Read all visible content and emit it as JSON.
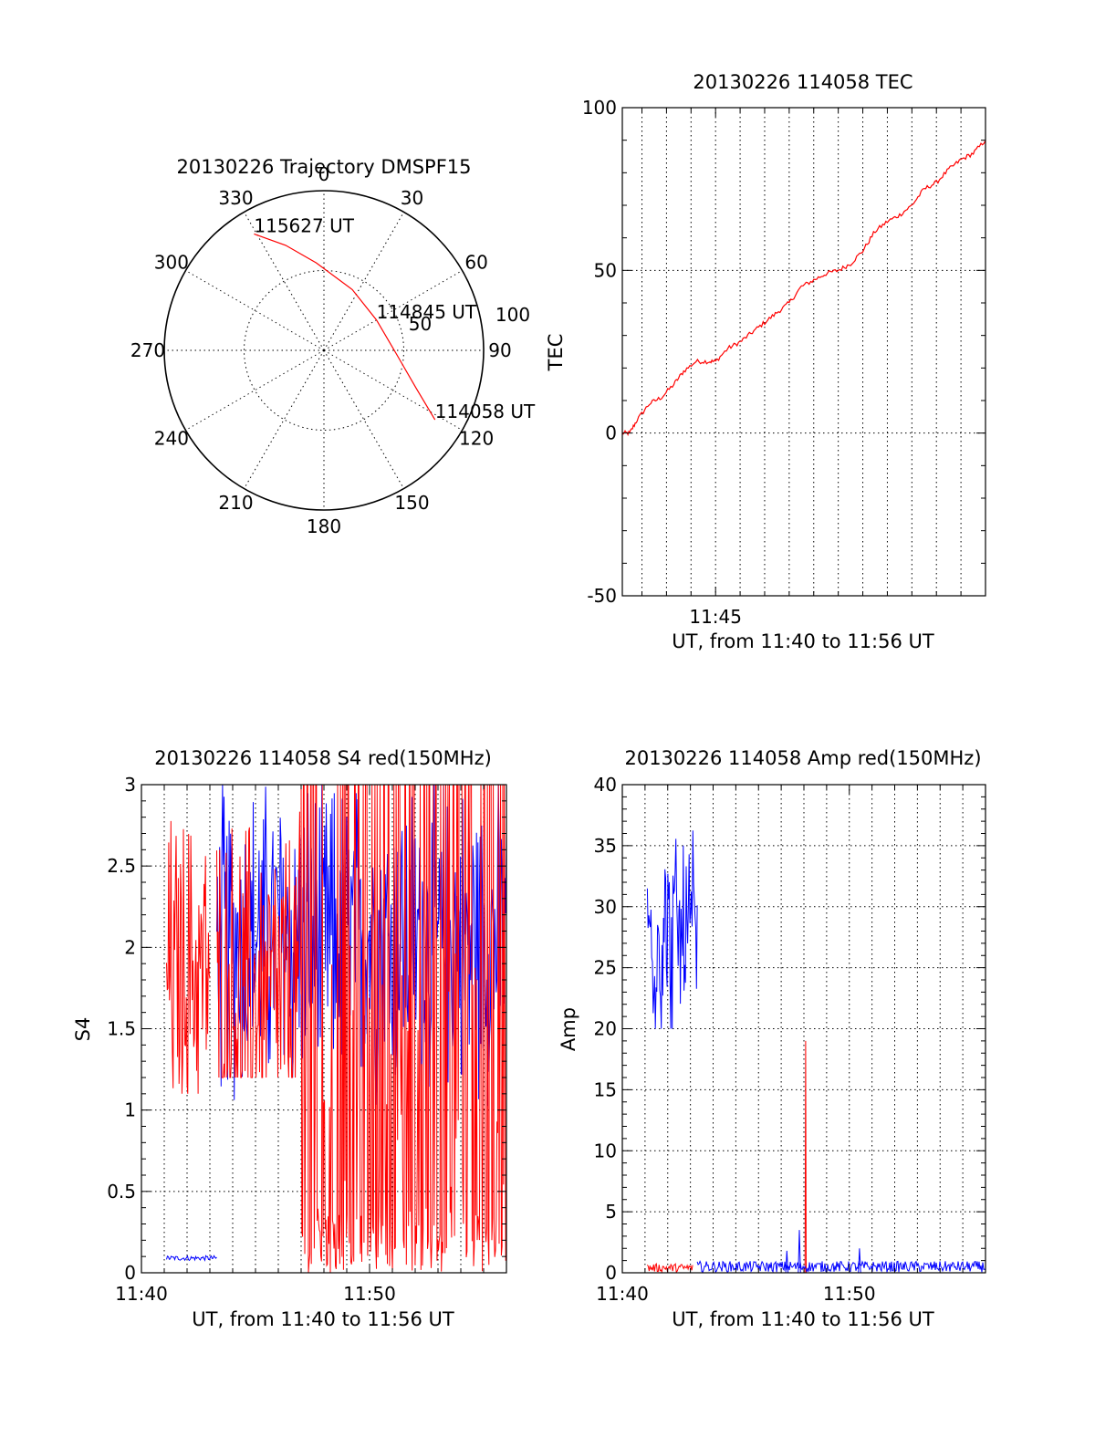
{
  "figure": {
    "colors": {
      "red": "#ff0000",
      "blue": "#0000ff",
      "axis": "#000000"
    }
  },
  "chart_data": [
    {
      "id": "trajectory",
      "type": "polar",
      "title": "20130226 Trajectory DMSPF15",
      "angle_labels": [
        "0",
        "30",
        "60",
        "90",
        "120",
        "150",
        "180",
        "210",
        "240",
        "270",
        "300",
        "330"
      ],
      "radial_max": 100,
      "radial_rings": [
        50,
        100
      ],
      "radial_ring_labels": [
        "50",
        "100"
      ],
      "series": [
        {
          "color": "#ff0000",
          "points": [
            {
              "az": 329,
              "zen": 85
            },
            {
              "az": 340,
              "zen": 70
            },
            {
              "az": 355,
              "zen": 55
            },
            {
              "az": 25,
              "zen": 42
            },
            {
              "az": 60,
              "zen": 38
            },
            {
              "az": 92,
              "zen": 45
            },
            {
              "az": 112,
              "zen": 62
            },
            {
              "az": 122,
              "zen": 82
            }
          ]
        }
      ],
      "annotations": [
        {
          "text": "115627 UT",
          "az": 329,
          "zen": 85
        },
        {
          "text": "114845 UT",
          "az": 60,
          "zen": 38
        },
        {
          "text": "114058 UT",
          "az": 122,
          "zen": 82
        }
      ]
    },
    {
      "id": "tec",
      "type": "line",
      "title": "20130226 114058 TEC",
      "xlabel": "UT, from 11:40 to 11:56 UT",
      "ylabel": "TEC",
      "xlim_minutes": [
        41.2,
        56
      ],
      "ylim": [
        -50,
        100
      ],
      "x_ticks": [
        {
          "at": 45,
          "label": "11:45"
        }
      ],
      "y_ticks": [
        -50,
        0,
        50,
        100
      ],
      "y_tick_labels": [
        "-50",
        "0",
        "50",
        "100"
      ],
      "grid_x_step_minutes": 1,
      "series": [
        {
          "color": "#ff0000",
          "x": [
            41.2,
            41.5,
            41.8,
            42.3,
            42.8,
            43.3,
            43.7,
            44.2,
            44.7,
            45.0,
            45.5,
            46.0,
            46.5,
            47.0,
            47.5,
            48.0,
            48.5,
            49.0,
            49.5,
            50.0,
            50.5,
            51.0,
            51.5,
            52.0,
            52.5,
            53.0,
            53.5,
            54.0,
            54.5,
            55.0,
            55.5,
            56.0
          ],
          "y": [
            0,
            0,
            4,
            9,
            11,
            15,
            19,
            22,
            22,
            22,
            26,
            28,
            31,
            34,
            37,
            40,
            45,
            47,
            49,
            50,
            52,
            56,
            62,
            65,
            67,
            70,
            75,
            77,
            81,
            84,
            86,
            90
          ]
        }
      ]
    },
    {
      "id": "s4",
      "type": "line",
      "title": "20130226 114058 S4 red(150MHz)",
      "xlabel": "UT, from 11:40 to 11:56 UT",
      "ylabel": "S4",
      "xlim_minutes": [
        40,
        56
      ],
      "ylim": [
        0,
        3
      ],
      "x_ticks": [
        {
          "at": 40,
          "label": "11:40"
        },
        {
          "at": 50,
          "label": "11:50"
        }
      ],
      "y_ticks": [
        0,
        0.5,
        1,
        1.5,
        2,
        2.5,
        3
      ],
      "y_tick_labels": [
        "0",
        "0.5",
        "1",
        "1.5",
        "2",
        "2.5",
        "3"
      ],
      "grid_x_step_minutes": 1,
      "series": [
        {
          "color": "#0000ff",
          "segments": [
            {
              "x0": 41.1,
              "x1": 43.3,
              "kind": "flat",
              "y": 0.09,
              "jitter": 0.015
            },
            {
              "x0": 43.3,
              "x1": 56,
              "kind": "noisy",
              "lo": 0.9,
              "hi": 3.0,
              "mean": 2.05
            }
          ]
        },
        {
          "color": "#ff0000",
          "segments": [
            {
              "x0": 41.1,
              "x1": 43.0,
              "kind": "noisy",
              "lo": 1.1,
              "hi": 3.0,
              "mean": 1.85
            },
            {
              "x0": 43.3,
              "x1": 47.0,
              "kind": "noisy",
              "lo": 1.2,
              "hi": 3.0,
              "mean": 1.65
            },
            {
              "x0": 47.0,
              "x1": 56,
              "kind": "spiky",
              "lo": 0.0,
              "hi": 3.0,
              "mean": 1.3
            }
          ]
        }
      ]
    },
    {
      "id": "amp",
      "type": "line",
      "title": "20130226 114058 Amp red(150MHz)",
      "xlabel": "UT, from 11:40 to 11:56 UT",
      "ylabel": "Amp",
      "xlim_minutes": [
        40,
        56
      ],
      "ylim": [
        0,
        40
      ],
      "x_ticks": [
        {
          "at": 40,
          "label": "11:40"
        },
        {
          "at": 50,
          "label": "11:50"
        }
      ],
      "y_ticks": [
        0,
        5,
        10,
        15,
        20,
        25,
        30,
        35,
        40
      ],
      "y_tick_labels": [
        "0",
        "5",
        "10",
        "15",
        "20",
        "25",
        "30",
        "35",
        "40"
      ],
      "grid_x_step_minutes": 1,
      "series": [
        {
          "color": "#ff0000",
          "segments": [
            {
              "x0": 41.1,
              "x1": 43.1,
              "kind": "flat",
              "y": 0.4,
              "jitter": 0.35
            },
            {
              "x0": 48.05,
              "x1": 48.1,
              "kind": "spike",
              "y": 19
            }
          ]
        },
        {
          "color": "#0000ff",
          "segments": [
            {
              "x0": 41.1,
              "x1": 43.3,
              "kind": "noisy",
              "lo": 20,
              "hi": 38,
              "mean": 27.5
            },
            {
              "x0": 43.3,
              "x1": 56,
              "kind": "flat",
              "y": 0.5,
              "jitter": 0.45
            },
            {
              "x0": 47.2,
              "x1": 47.3,
              "kind": "spike",
              "y": 1.8
            },
            {
              "x0": 47.75,
              "x1": 47.85,
              "kind": "spike",
              "y": 3.5
            },
            {
              "x0": 50.4,
              "x1": 50.5,
              "kind": "spike",
              "y": 2.0
            }
          ]
        }
      ]
    }
  ]
}
